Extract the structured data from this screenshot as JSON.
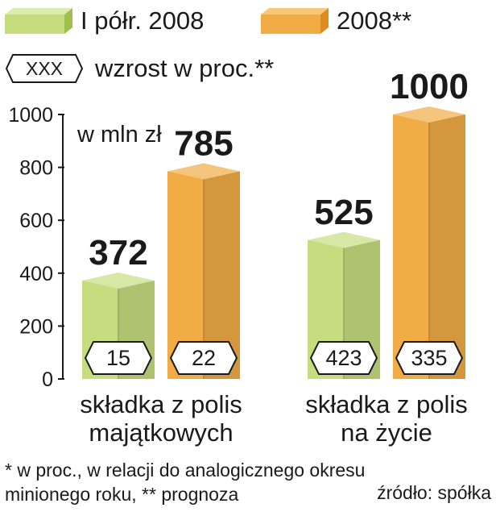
{
  "legend": {
    "series1": "I półr. 2008",
    "series2": "2008**",
    "growth": "wzrost w proc.**",
    "growth_badge": "XXX"
  },
  "unit_label": "w mln zł",
  "colors": {
    "series1": "#c6dd7f",
    "series2": "#f2ac45"
  },
  "chart_data": {
    "type": "bar",
    "categories": [
      "składka z polis majątkowych",
      "składka z polis na życie"
    ],
    "category_lines": [
      [
        "składka z polis",
        "majątkowych"
      ],
      [
        "składka z polis",
        "na życie"
      ]
    ],
    "series": [
      {
        "name": "I półr. 2008",
        "values": [
          372,
          525
        ],
        "labels": [
          "372",
          "525"
        ],
        "growth": [
          "15",
          "423"
        ]
      },
      {
        "name": "2008**",
        "values": [
          785,
          1000
        ],
        "labels": [
          "785",
          "1000"
        ],
        "growth": [
          "22",
          "335"
        ]
      }
    ],
    "ylim": [
      0,
      1000
    ],
    "yticks": [
      "0",
      "200",
      "400",
      "600",
      "800",
      "1000"
    ],
    "grid": false
  },
  "footnote": {
    "line1": "* w proc., w relacji do analogicznego okresu",
    "line2": "minionego roku, ** prognoza",
    "source": "źródło: spółka"
  }
}
